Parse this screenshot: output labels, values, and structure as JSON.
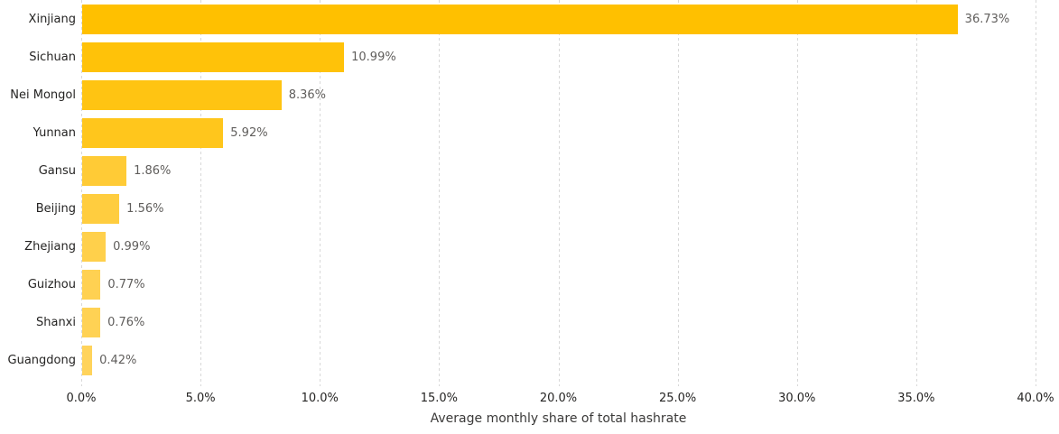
{
  "chart_data": {
    "type": "bar",
    "orientation": "horizontal",
    "title": "",
    "xlabel": "Average monthly share of total hashrate",
    "ylabel": "",
    "categories": [
      "Xinjiang",
      "Sichuan",
      "Nei Mongol",
      "Yunnan",
      "Gansu",
      "Beijing",
      "Zhejiang",
      "Guizhou",
      "Shanxi",
      "Guangdong"
    ],
    "values": [
      36.73,
      10.99,
      8.36,
      5.92,
      1.86,
      1.56,
      0.99,
      0.77,
      0.76,
      0.42
    ],
    "data_labels": [
      "36.73%",
      "10.99%",
      "8.36%",
      "5.92%",
      "1.86%",
      "1.56%",
      "0.99%",
      "0.77%",
      "0.76%",
      "0.42%"
    ],
    "bar_colors": [
      "#FFC000",
      "#FFC209",
      "#FFC412",
      "#FFC61C",
      "#FFCB36",
      "#FFCD3F",
      "#FFD04B",
      "#FFD152",
      "#FFD254",
      "#FFD35B"
    ],
    "xlim": [
      0,
      40
    ],
    "x_ticks": [
      "0.0%",
      "5.0%",
      "10.0%",
      "15.0%",
      "20.0%",
      "25.0%",
      "30.0%",
      "35.0%",
      "40.0%"
    ],
    "x_tick_values": [
      0,
      5,
      10,
      15,
      20,
      25,
      30,
      35,
      40
    ],
    "grid": "vertical-dashed",
    "legend": "none"
  },
  "colors": {
    "background": "#FFFFFF",
    "gridline": "#D8D8D8",
    "category_label": "#252423",
    "tick_label": "#252423",
    "value_label": "#605E5C",
    "bar_color_max": "#FFC000",
    "bar_color_min": "#FFD35B"
  }
}
